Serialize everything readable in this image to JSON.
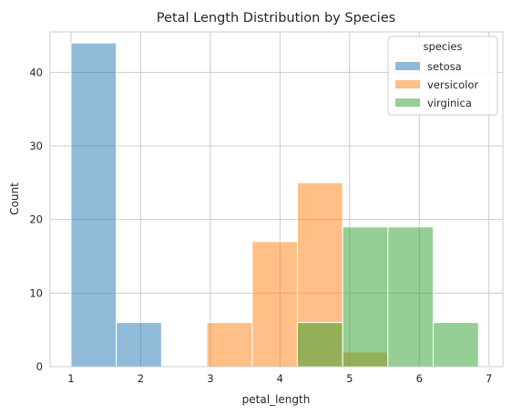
{
  "chart_data": {
    "type": "histogram",
    "title": "Petal Length Distribution by Species",
    "xlabel": "petal_length",
    "ylabel": "Count",
    "xlim": [
      0.7,
      7.2
    ],
    "ylim": [
      0,
      45.5
    ],
    "xticks": [
      1,
      2,
      3,
      4,
      5,
      6,
      7
    ],
    "yticks": [
      0,
      10,
      20,
      30,
      40
    ],
    "grid": true,
    "legend": {
      "title": "species",
      "placement": "top-right"
    },
    "bin_edges": [
      1.0,
      1.65,
      2.3,
      2.95,
      3.6,
      4.25,
      4.9,
      5.55,
      6.2,
      6.85
    ],
    "series": [
      {
        "name": "setosa",
        "color": "#1f77b4",
        "counts": [
          44,
          6,
          0,
          0,
          0,
          0,
          0,
          0,
          0
        ]
      },
      {
        "name": "versicolor",
        "color": "#ff7f0e",
        "counts": [
          0,
          0,
          0,
          6,
          17,
          25,
          2,
          0,
          0
        ]
      },
      {
        "name": "virginica",
        "color": "#2ca02c",
        "counts": [
          0,
          0,
          0,
          0,
          0,
          6,
          19,
          19,
          6
        ]
      }
    ]
  }
}
